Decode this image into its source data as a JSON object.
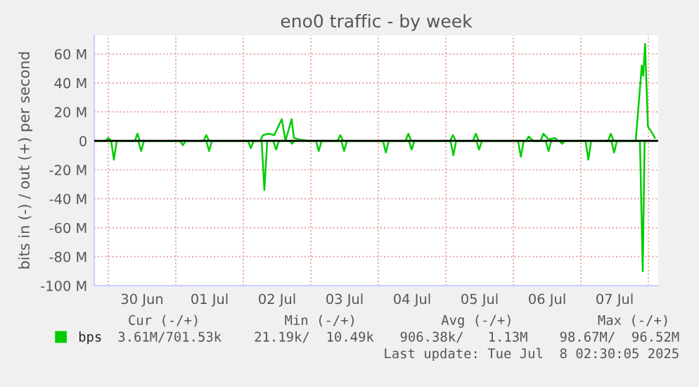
{
  "chart_data": {
    "type": "line",
    "title": "eno0 traffic - by week",
    "ylabel": "bits in (-) / out (+) per second",
    "series": [
      {
        "name": "bps",
        "color": "#00cc00",
        "x": [
          "2025-06-29T19:00",
          "2025-06-29T23:00",
          "2025-06-30T00:00",
          "2025-06-30T01:00",
          "2025-06-30T09:30",
          "2025-06-30T10:20",
          "2025-06-30T11:10",
          "2025-07-01T09:50",
          "2025-07-01T10:50",
          "2025-07-01T11:50",
          "2025-07-02T06:00",
          "2025-07-02T07:00",
          "2025-07-02T09:00",
          "2025-07-02T11:00",
          "2025-07-02T13:40",
          "2025-07-02T15:00",
          "2025-07-02T17:10",
          "2025-07-02T18:00",
          "2025-07-02T20:00",
          "2025-07-02T23:00",
          "2025-07-03T09:30",
          "2025-07-03T10:30",
          "2025-07-03T11:30",
          "2025-07-04T09:40",
          "2025-07-04T10:40",
          "2025-07-04T11:40",
          "2025-07-05T01:30",
          "2025-07-05T02:30",
          "2025-07-05T03:30",
          "2025-07-05T09:40",
          "2025-07-05T10:40",
          "2025-07-05T11:40",
          "2025-07-06T04:30",
          "2025-07-06T05:30",
          "2025-07-06T07:00",
          "2025-07-06T09:40",
          "2025-07-06T10:40",
          "2025-07-06T12:30",
          "2025-07-06T14:40",
          "2025-07-06T16:00",
          "2025-07-07T09:40",
          "2025-07-07T10:40",
          "2025-07-07T11:40",
          "2025-07-07T19:30",
          "2025-07-07T21:40",
          "2025-07-07T22:10",
          "2025-07-07T22:50",
          "2025-07-07T23:50",
          "2025-07-08T01:30",
          "2025-07-08T02:20"
        ],
        "values": [
          0,
          0,
          2,
          0,
          0,
          5,
          0,
          0,
          4,
          0,
          0,
          4,
          5,
          4,
          15,
          0,
          15,
          2,
          1,
          0,
          0,
          4,
          0,
          0,
          5,
          0,
          0,
          4,
          0,
          0,
          5,
          0,
          0,
          3,
          0,
          0,
          5,
          1,
          2,
          0,
          0,
          5,
          0,
          0,
          52,
          45,
          67,
          10,
          5,
          2
        ]
      },
      {
        "color": "#00cc00",
        "x": [
          "2025-06-29T19:00",
          "2025-06-30T01:00",
          "2025-06-30T02:00",
          "2025-06-30T03:00",
          "2025-06-30T10:40",
          "2025-06-30T11:40",
          "2025-06-30T12:40",
          "2025-07-01T01:30",
          "2025-07-01T02:30",
          "2025-07-01T03:30",
          "2025-07-01T10:50",
          "2025-07-01T11:50",
          "2025-07-01T12:50",
          "2025-07-02T01:40",
          "2025-07-02T02:40",
          "2025-07-02T03:40",
          "2025-07-02T06:30",
          "2025-07-02T07:30",
          "2025-07-02T08:30",
          "2025-07-02T10:40",
          "2025-07-02T11:40",
          "2025-07-02T12:40",
          "2025-07-02T16:30",
          "2025-07-02T17:20",
          "2025-07-02T18:10",
          "2025-07-03T01:50",
          "2025-07-03T02:50",
          "2025-07-03T03:50",
          "2025-07-03T10:50",
          "2025-07-03T11:50",
          "2025-07-03T12:50",
          "2025-07-04T01:40",
          "2025-07-04T02:40",
          "2025-07-04T03:40",
          "2025-07-04T10:50",
          "2025-07-04T11:50",
          "2025-07-04T12:50",
          "2025-07-05T01:40",
          "2025-07-05T02:40",
          "2025-07-05T03:40",
          "2025-07-05T10:50",
          "2025-07-05T11:50",
          "2025-07-05T12:50",
          "2025-07-06T01:40",
          "2025-07-06T02:40",
          "2025-07-06T03:40",
          "2025-07-06T11:30",
          "2025-07-06T12:30",
          "2025-07-06T13:30",
          "2025-07-06T16:20",
          "2025-07-06T17:20",
          "2025-07-06T18:20",
          "2025-07-07T01:40",
          "2025-07-07T02:40",
          "2025-07-07T03:40",
          "2025-07-07T10:50",
          "2025-07-07T11:50",
          "2025-07-07T12:50",
          "2025-07-07T21:00",
          "2025-07-07T22:00",
          "2025-07-07T22:40",
          "2025-07-08T02:20"
        ],
        "values": [
          0,
          0,
          -13,
          0,
          0,
          -7,
          0,
          0,
          -3,
          0,
          0,
          -7,
          0,
          0,
          -5,
          0,
          0,
          -34,
          0,
          0,
          -6,
          0,
          0,
          -2,
          0,
          0,
          -7,
          0,
          0,
          -7,
          0,
          0,
          -8,
          0,
          0,
          -6,
          0,
          0,
          -10,
          0,
          0,
          -6,
          0,
          0,
          -11,
          0,
          0,
          -7,
          0,
          0,
          -2,
          0,
          0,
          -13,
          0,
          0,
          -8,
          0,
          0,
          -90,
          0,
          0
        ]
      }
    ],
    "xlim": [
      "2025-06-29T19:00",
      "2025-07-08T03:30"
    ],
    "xticks": [
      {
        "value": "2025-06-30T00:00",
        "label": null
      },
      {
        "value": "2025-06-30T12:00",
        "label": "30 Jun"
      },
      {
        "value": "2025-07-01T00:00",
        "label": null
      },
      {
        "value": "2025-07-01T12:00",
        "label": "01 Jul"
      },
      {
        "value": "2025-07-02T00:00",
        "label": null
      },
      {
        "value": "2025-07-02T12:00",
        "label": "02 Jul"
      },
      {
        "value": "2025-07-03T00:00",
        "label": null
      },
      {
        "value": "2025-07-03T12:00",
        "label": "03 Jul"
      },
      {
        "value": "2025-07-04T00:00",
        "label": null
      },
      {
        "value": "2025-07-04T12:00",
        "label": "04 Jul"
      },
      {
        "value": "2025-07-05T00:00",
        "label": null
      },
      {
        "value": "2025-07-05T12:00",
        "label": "05 Jul"
      },
      {
        "value": "2025-07-06T00:00",
        "label": null
      },
      {
        "value": "2025-07-06T12:00",
        "label": "06 Jul"
      },
      {
        "value": "2025-07-07T00:00",
        "label": null
      },
      {
        "value": "2025-07-07T12:00",
        "label": "07 Jul"
      },
      {
        "value": "2025-07-08T00:00",
        "label": null
      }
    ],
    "ylim": [
      -100,
      73
    ],
    "yticks": [
      {
        "value": -100,
        "label": "-100 M"
      },
      {
        "value": -80,
        "label": "-80 M"
      },
      {
        "value": -60,
        "label": "-60 M"
      },
      {
        "value": -40,
        "label": "-40 M"
      },
      {
        "value": -20,
        "label": "-20 M"
      },
      0,
      {
        "value": 20,
        "label": "20 M"
      },
      {
        "value": 40,
        "label": "40 M"
      },
      {
        "value": 60,
        "label": "60 M"
      }
    ],
    "ref_lines": [
      {
        "axis": "y",
        "value": 0,
        "color": "#000000"
      }
    ],
    "grid": true,
    "legend": "bottom left",
    "marker": "none",
    "line_style": "solid",
    "annotations": [
      "Cur (-/+)",
      "Min (-/+)",
      "Avg (-/+)",
      "Max (-/+)",
      "3.61M/701.53k",
      "21.19k/  10.49k",
      "906.38k/   1.13M",
      "98.67M/  96.52M",
      "Last update: Tue Jul  8 02:30:05 2025"
    ]
  }
}
